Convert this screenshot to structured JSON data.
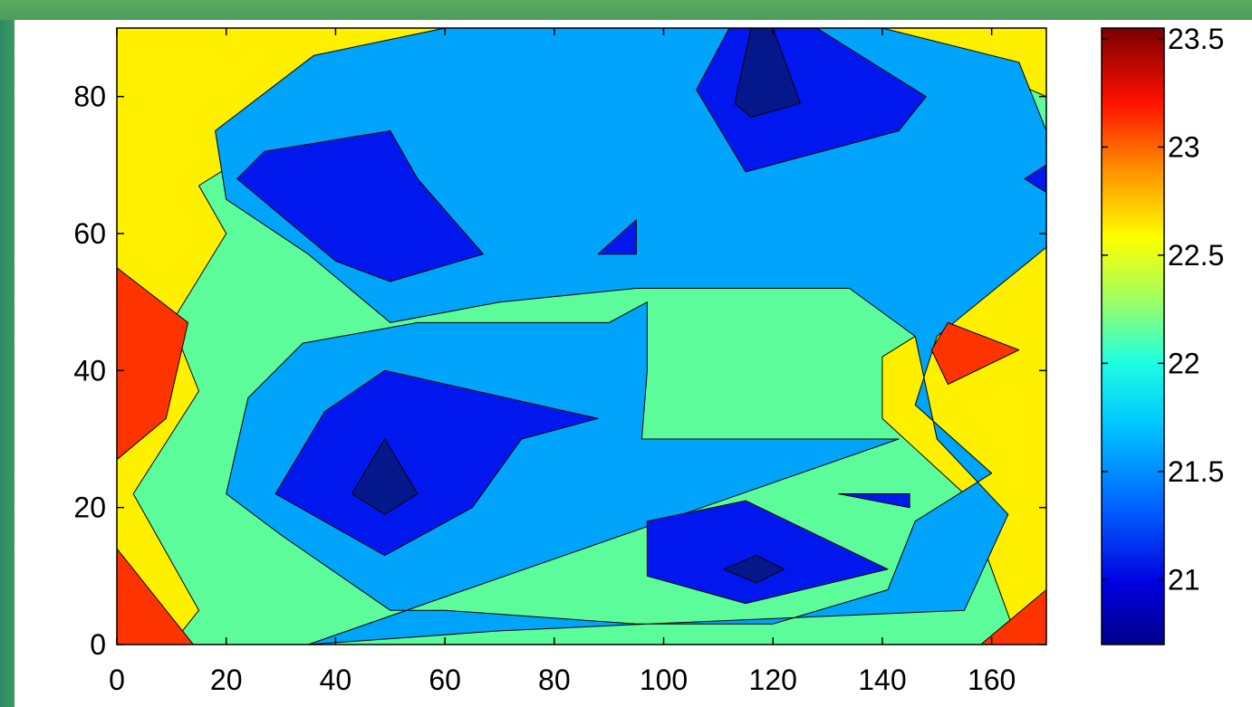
{
  "chart_data": {
    "type": "contour",
    "title": "",
    "xlabel": "",
    "ylabel": "",
    "xlim": [
      0,
      170
    ],
    "ylim": [
      0,
      90
    ],
    "x_ticks": [
      0,
      20,
      40,
      60,
      80,
      100,
      120,
      140,
      160
    ],
    "y_ticks": [
      0,
      20,
      40,
      60,
      80
    ],
    "colorbar": {
      "range": [
        20.7,
        23.55
      ],
      "ticks": [
        21,
        21.5,
        22,
        22.5,
        23,
        23.5
      ],
      "colormap": "jet"
    },
    "level_colors": {
      "20.5": "#04188c",
      "21.0": "#0018ee",
      "21.5": "#00a4fb",
      "22.0": "#5cfc9a",
      "22.5": "#fff000",
      "23.0": "#fd3400"
    },
    "regions": [
      {
        "level": 22.5,
        "poly": [
          [
            0,
            0
          ],
          [
            170,
            0
          ],
          [
            170,
            90
          ],
          [
            0,
            90
          ]
        ]
      },
      {
        "level": 22.0,
        "poly": [
          [
            10,
            0
          ],
          [
            165,
            0
          ],
          [
            155,
            22
          ],
          [
            140,
            33
          ],
          [
            140,
            42
          ],
          [
            150,
            47
          ],
          [
            160,
            55
          ],
          [
            150,
            63
          ],
          [
            150,
            68
          ],
          [
            170,
            67
          ],
          [
            170,
            80
          ],
          [
            150,
            87
          ],
          [
            140,
            90
          ],
          [
            60,
            90
          ],
          [
            45,
            80
          ],
          [
            25,
            72
          ],
          [
            15,
            67
          ],
          [
            20,
            60
          ],
          [
            10,
            47
          ],
          [
            15,
            37
          ],
          [
            3,
            22
          ],
          [
            15,
            5
          ]
        ]
      },
      {
        "level": 21.5,
        "poly": [
          [
            35,
            0
          ],
          [
            70,
            2
          ],
          [
            97,
            3
          ],
          [
            155,
            5
          ],
          [
            163,
            19
          ],
          [
            150,
            30
          ],
          [
            146,
            45
          ],
          [
            134,
            52
          ],
          [
            104,
            52
          ],
          [
            95,
            52
          ],
          [
            70,
            50
          ],
          [
            50,
            47
          ],
          [
            35,
            57
          ],
          [
            20,
            65
          ],
          [
            18,
            75
          ],
          [
            36,
            86
          ],
          [
            60,
            90
          ],
          [
            140,
            90
          ],
          [
            165,
            85
          ],
          [
            170,
            75
          ],
          [
            170,
            58
          ],
          [
            150,
            45
          ],
          [
            146,
            35
          ],
          [
            160,
            25
          ],
          [
            146,
            18
          ],
          [
            141,
            8
          ],
          [
            120,
            3
          ],
          [
            95,
            3
          ],
          [
            60,
            5
          ],
          [
            50,
            5
          ],
          [
            30,
            16
          ],
          [
            20,
            22
          ],
          [
            24,
            36
          ],
          [
            34,
            44
          ],
          [
            55,
            47
          ],
          [
            90,
            47
          ],
          [
            97,
            50
          ],
          [
            97,
            40
          ],
          [
            96,
            30
          ],
          [
            133,
            30
          ],
          [
            143,
            30
          ]
        ]
      },
      {
        "level": 21.0,
        "poly": [
          [
            29,
            22
          ],
          [
            49,
            13
          ],
          [
            65,
            20
          ],
          [
            74,
            30
          ],
          [
            88,
            33
          ],
          [
            49,
            40
          ],
          [
            38,
            34
          ]
        ]
      },
      {
        "level": 20.5,
        "poly": [
          [
            43,
            22
          ],
          [
            49,
            19
          ],
          [
            55,
            22
          ],
          [
            49,
            30
          ]
        ]
      },
      {
        "level": 21.0,
        "poly": [
          [
            22,
            68
          ],
          [
            27,
            72
          ],
          [
            50,
            75
          ],
          [
            55,
            68
          ],
          [
            67,
            57
          ],
          [
            50,
            53
          ],
          [
            40,
            56
          ]
        ]
      },
      {
        "level": 21.0,
        "poly": [
          [
            97,
            10
          ],
          [
            115,
            6
          ],
          [
            141,
            11
          ],
          [
            115,
            21
          ],
          [
            97,
            18
          ]
        ]
      },
      {
        "level": 20.5,
        "poly": [
          [
            111,
            11
          ],
          [
            117,
            13
          ],
          [
            122,
            11
          ],
          [
            117,
            9
          ]
        ]
      },
      {
        "level": 21.0,
        "poly": [
          [
            106,
            81
          ],
          [
            112,
            90
          ],
          [
            128,
            90
          ],
          [
            148,
            80
          ],
          [
            143,
            75
          ],
          [
            115,
            69
          ]
        ]
      },
      {
        "level": 20.5,
        "poly": [
          [
            113,
            79
          ],
          [
            116,
            90
          ],
          [
            120,
            90
          ],
          [
            125,
            79
          ],
          [
            116,
            77
          ]
        ]
      },
      {
        "level": 21.0,
        "poly": [
          [
            88,
            57
          ],
          [
            95,
            62
          ],
          [
            95,
            57
          ]
        ]
      },
      {
        "level": 21.0,
        "poly": [
          [
            166,
            68
          ],
          [
            170,
            70
          ],
          [
            170,
            66
          ]
        ]
      },
      {
        "level": 21.0,
        "poly": [
          [
            132,
            22
          ],
          [
            145,
            22
          ],
          [
            145,
            20
          ]
        ]
      },
      {
        "level": 23.0,
        "poly": [
          [
            0,
            55
          ],
          [
            0,
            27
          ],
          [
            9,
            33
          ],
          [
            13,
            47
          ]
        ]
      },
      {
        "level": 23.0,
        "poly": [
          [
            0,
            0
          ],
          [
            14,
            0
          ],
          [
            0,
            14
          ]
        ]
      },
      {
        "level": 23.0,
        "poly": [
          [
            152,
            38
          ],
          [
            165,
            43
          ],
          [
            152,
            47
          ],
          [
            149,
            43
          ]
        ]
      },
      {
        "level": 23.0,
        "poly": [
          [
            158,
            0
          ],
          [
            170,
            0
          ],
          [
            170,
            8
          ]
        ]
      }
    ]
  }
}
